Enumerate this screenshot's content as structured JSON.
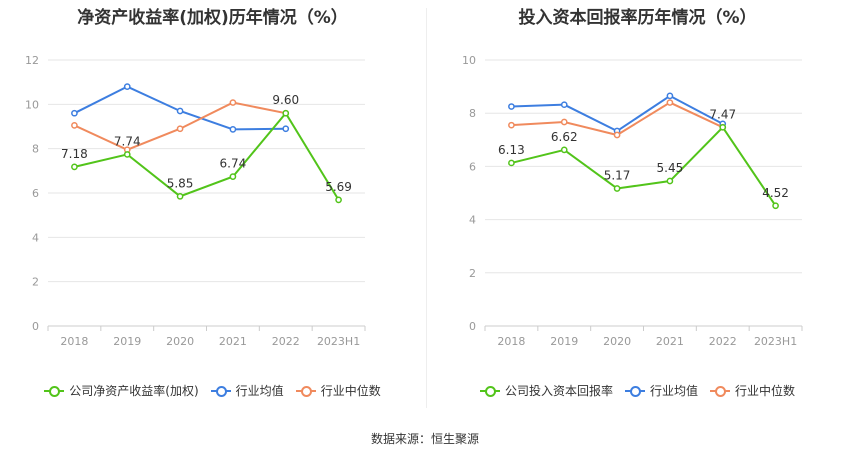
{
  "chart_data": [
    {
      "type": "line",
      "title": "净资产收益率(加权)历年情况（%）",
      "categories": [
        "2018",
        "2019",
        "2020",
        "2021",
        "2022",
        "2023H1"
      ],
      "ylim": [
        0,
        12
      ],
      "yticks": [
        0,
        2,
        4,
        6,
        8,
        10,
        12
      ],
      "grid": true,
      "legend_position": "bottom",
      "series": [
        {
          "name": "公司净资产收益率(加权)",
          "color": "#52c41a",
          "values": [
            7.18,
            7.74,
            5.85,
            6.74,
            9.6,
            5.69
          ],
          "labels": [
            "7.18",
            "7.74",
            "5.85",
            "6.74",
            "9.60",
            "5.69"
          ]
        },
        {
          "name": "行业均值",
          "color": "#3d7ee0",
          "values": [
            9.6,
            10.8,
            9.7,
            8.87,
            8.9,
            null
          ]
        },
        {
          "name": "行业中位数",
          "color": "#f08a5d",
          "values": [
            9.05,
            7.95,
            8.9,
            10.08,
            9.6,
            null
          ]
        }
      ]
    },
    {
      "type": "line",
      "title": "投入资本回报率历年情况（%）",
      "categories": [
        "2018",
        "2019",
        "2020",
        "2021",
        "2022",
        "2023H1"
      ],
      "ylim": [
        0,
        10
      ],
      "yticks": [
        0,
        2,
        4,
        6,
        8,
        10
      ],
      "grid": true,
      "legend_position": "bottom",
      "series": [
        {
          "name": "公司投入资本回报率",
          "color": "#52c41a",
          "values": [
            6.13,
            6.62,
            5.17,
            5.45,
            7.47,
            4.52
          ],
          "labels": [
            "6.13",
            "6.62",
            "5.17",
            "5.45",
            "7.47",
            "4.52"
          ]
        },
        {
          "name": "行业均值",
          "color": "#3d7ee0",
          "values": [
            8.25,
            8.32,
            7.33,
            8.65,
            7.6,
            null
          ]
        },
        {
          "name": "行业中位数",
          "color": "#f08a5d",
          "values": [
            7.55,
            7.67,
            7.18,
            8.4,
            7.47,
            null
          ]
        }
      ]
    }
  ],
  "footer": {
    "source": "数据来源：恒生聚源"
  }
}
